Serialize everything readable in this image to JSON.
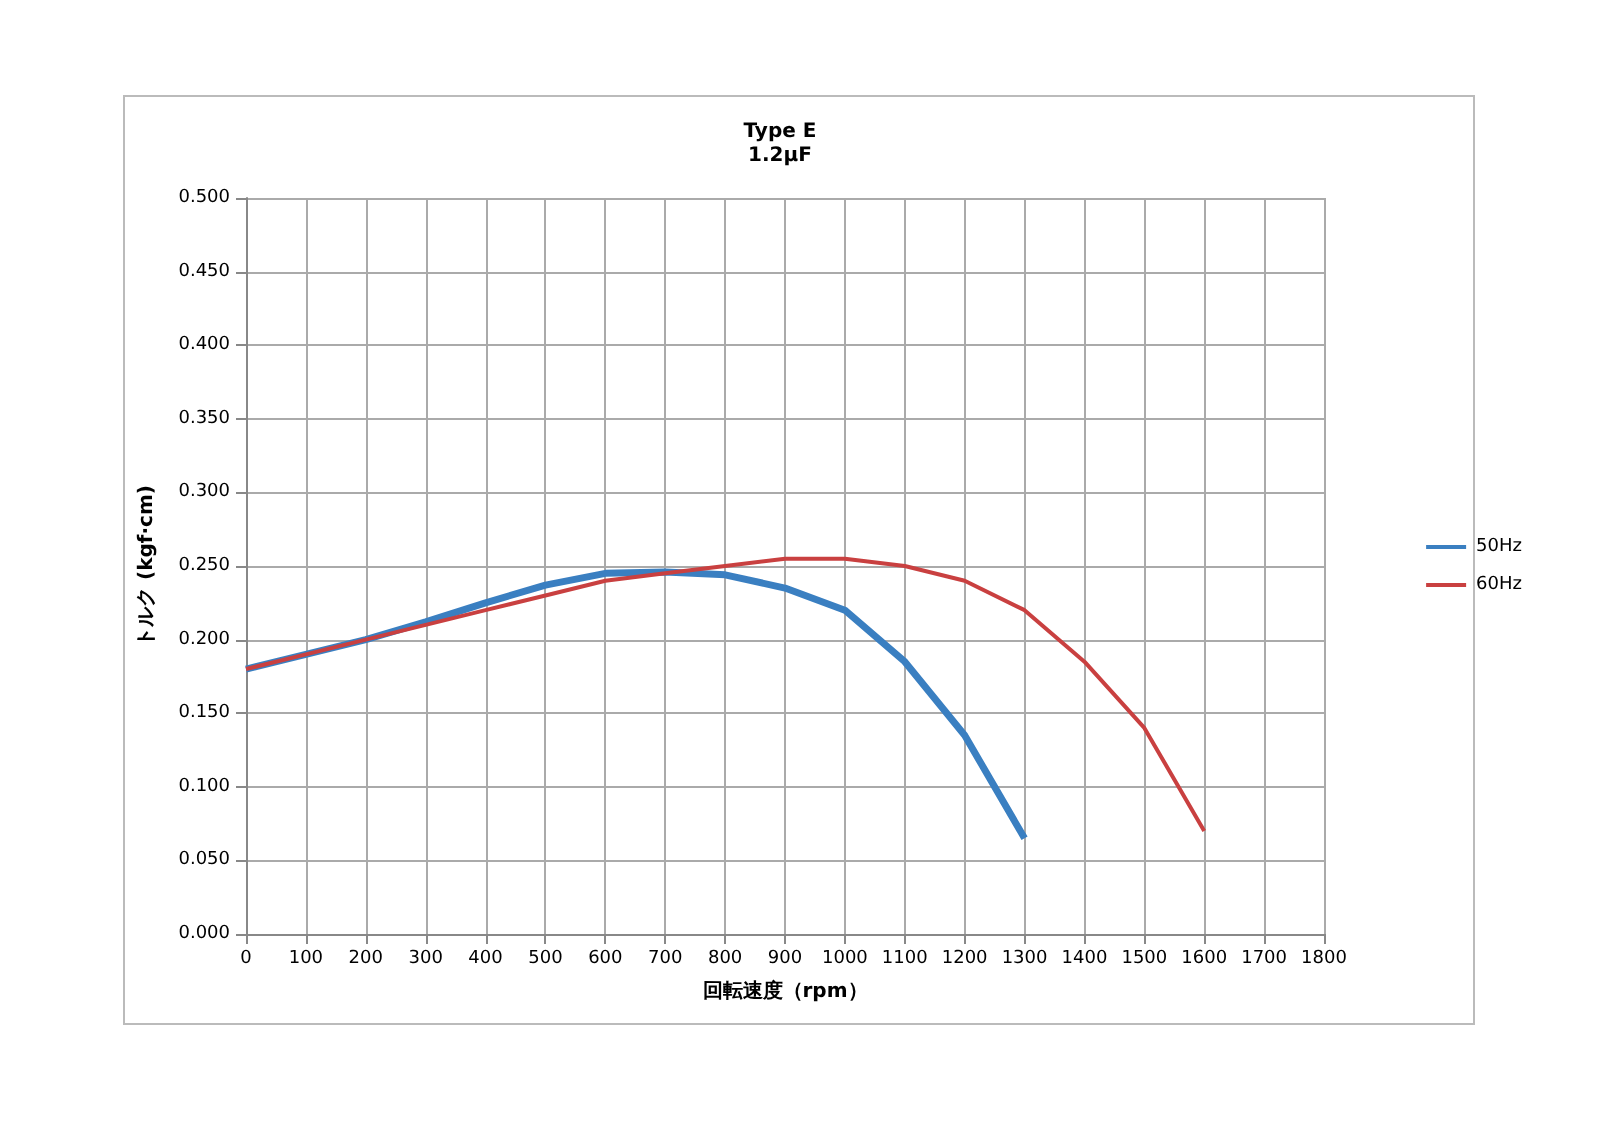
{
  "chart_data": {
    "type": "line",
    "title": "Type E",
    "subtitle": "1.2µF",
    "xlabel": "回転速度（rpm）",
    "ylabel": "トルク (kgf·cm)",
    "xlim": [
      0,
      1800
    ],
    "xticks": [
      0,
      100,
      200,
      300,
      400,
      500,
      600,
      700,
      800,
      900,
      1000,
      1100,
      1200,
      1300,
      1400,
      1500,
      1600,
      1700,
      1800
    ],
    "ylim": [
      0,
      0.5
    ],
    "yticks": [
      {
        "value": 0,
        "label": "0.000"
      },
      {
        "value": 0.05,
        "label": "0.050"
      },
      {
        "value": 0.1,
        "label": "0.100"
      },
      {
        "value": 0.15,
        "label": "0.150"
      },
      {
        "value": 0.2,
        "label": "0.200"
      },
      {
        "value": 0.25,
        "label": "0.250"
      },
      {
        "value": 0.3,
        "label": "0.300"
      },
      {
        "value": 0.35,
        "label": "0.350"
      },
      {
        "value": 0.4,
        "label": "0.400"
      },
      {
        "value": 0.45,
        "label": "0.450"
      },
      {
        "value": 0.5,
        "label": "0.500"
      }
    ],
    "grid": true,
    "legend": "right",
    "marker": "none",
    "line_style": "solid",
    "series": [
      {
        "name": "50Hz",
        "color": "#3a7fc1",
        "x": [
          0,
          100,
          200,
          300,
          400,
          500,
          600,
          700,
          800,
          900,
          1000,
          1100,
          1200,
          1300
        ],
        "values": [
          0.18,
          0.19,
          0.2,
          0.212,
          0.225,
          0.237,
          0.245,
          0.246,
          0.244,
          0.235,
          0.22,
          0.185,
          0.135,
          0.065
        ]
      },
      {
        "name": "60Hz",
        "color": "#c94040",
        "x": [
          0,
          100,
          200,
          300,
          400,
          500,
          600,
          700,
          800,
          900,
          1000,
          1100,
          1200,
          1300,
          1400,
          1500,
          1600
        ],
        "values": [
          0.18,
          0.19,
          0.2,
          0.21,
          0.22,
          0.23,
          0.24,
          0.245,
          0.25,
          0.255,
          0.255,
          0.25,
          0.24,
          0.22,
          0.185,
          0.14,
          0.07
        ]
      }
    ]
  }
}
